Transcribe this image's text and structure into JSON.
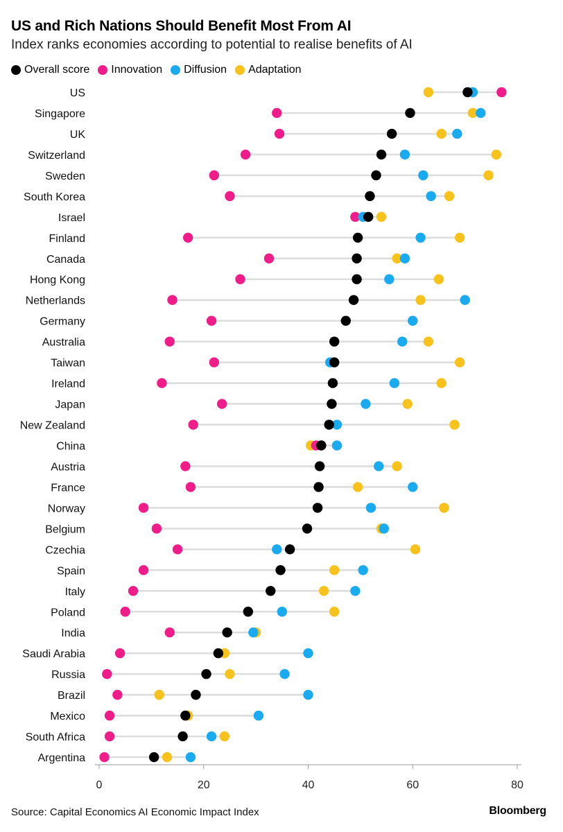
{
  "header": {
    "title": "US and Rich Nations Should Benefit Most From AI",
    "subtitle": "Index ranks economies according to potential to realise benefits of AI"
  },
  "footer": {
    "source": "Source: Capital Economics AI Economic Impact Index",
    "brand": "Bloomberg"
  },
  "colors": {
    "overall": "#000000",
    "innovation": "#ee1d8a",
    "diffusion": "#19aaf0",
    "adaptation": "#f7c21b",
    "range_line": "#dcdcdc",
    "axis": "#9a9a9a"
  },
  "chart_data": {
    "type": "scatter",
    "title": "US and Rich Nations Should Benefit Most From AI",
    "subtitle": "Index ranks economies according to potential to realise benefits of AI",
    "xlim": [
      0,
      80
    ],
    "xticks": [
      0,
      20,
      40,
      60,
      80
    ],
    "legend_position": "top-left",
    "grid": false,
    "categories": [
      "US",
      "Singapore",
      "UK",
      "Switzerland",
      "Sweden",
      "South Korea",
      "Israel",
      "Finland",
      "Canada",
      "Hong Kong",
      "Netherlands",
      "Germany",
      "Australia",
      "Taiwan",
      "Ireland",
      "Japan",
      "New Zealand",
      "China",
      "Austria",
      "France",
      "Norway",
      "Belgium",
      "Czechia",
      "Spain",
      "Italy",
      "Poland",
      "India",
      "Saudi Arabia",
      "Russia",
      "Brazil",
      "Mexico",
      "South Africa",
      "Argentina"
    ],
    "series": [
      {
        "name": "Overall score",
        "key": "overall",
        "values": [
          70.5,
          59.5,
          56,
          54,
          53,
          51.8,
          51.5,
          49.5,
          49.3,
          49.3,
          48.7,
          47.2,
          45,
          45,
          44.7,
          44.5,
          44,
          42.5,
          42.2,
          42,
          41.8,
          39.8,
          36.5,
          34.7,
          32.8,
          28.5,
          24.5,
          22.8,
          20.5,
          18.5,
          16.5,
          16,
          10.5
        ]
      },
      {
        "name": "Innovation",
        "key": "innovation",
        "values": [
          77,
          34,
          34.5,
          28,
          22,
          25,
          49,
          17,
          32.5,
          27,
          14,
          21.5,
          13.5,
          22,
          12,
          23.5,
          18,
          41.5,
          16.5,
          17.5,
          8.5,
          11,
          15,
          8.5,
          6.5,
          5,
          13.5,
          4,
          1.5,
          3.5,
          2,
          2,
          1
        ]
      },
      {
        "name": "Diffusion",
        "key": "diffusion",
        "values": [
          71.5,
          73,
          68.5,
          58.5,
          62,
          63.5,
          50.5,
          61.5,
          58.5,
          55.5,
          70,
          60,
          58,
          44.2,
          56.5,
          51,
          45.5,
          45.5,
          53.5,
          60,
          52,
          54.5,
          34,
          50.5,
          49,
          35,
          29.5,
          40,
          35.5,
          40,
          30.5,
          21.5,
          17.5
        ]
      },
      {
        "name": "Adaptation",
        "key": "adaptation",
        "values": [
          63,
          71.5,
          65.5,
          76,
          74.5,
          67,
          54,
          69,
          57,
          65,
          61.5,
          60,
          63,
          69,
          65.5,
          59,
          68,
          40.5,
          57,
          49.5,
          66,
          54,
          60.5,
          45,
          43,
          45,
          30,
          24,
          25,
          11.5,
          17,
          24,
          13
        ]
      }
    ]
  }
}
